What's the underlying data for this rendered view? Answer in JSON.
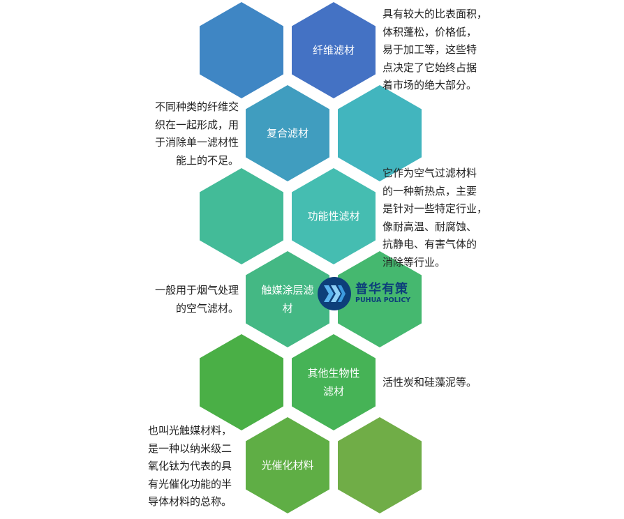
{
  "hexagons": [
    {
      "label": "",
      "color": "#3f86c4"
    },
    {
      "label": "纤维滤材",
      "color": "#4472c4"
    },
    {
      "label": "复合滤材",
      "color": "#409dbf"
    },
    {
      "label": "",
      "color": "#42b5be"
    },
    {
      "label": "",
      "color": "#43bb98"
    },
    {
      "label": "功能性滤材",
      "color": "#45bdb1"
    },
    {
      "label": "触媒涂层滤材",
      "color": "#44b884"
    },
    {
      "label": "",
      "color": "#45b86f"
    },
    {
      "label": "",
      "color": "#4aaf46"
    },
    {
      "label": "其他生物性滤材",
      "color": "#46b356"
    },
    {
      "label": "光催化材料",
      "color": "#5fae45"
    },
    {
      "label": "",
      "color": "#70ad47"
    }
  ],
  "descriptions": {
    "fiber": [
      "具有较大的比表面积，",
      "体积蓬松，价格低，",
      "易于加工等，这些特",
      "点决定了它始终占据",
      "着市场的绝大部分。"
    ],
    "composite": [
      "不同种类的纤维交",
      "织在一起形成，用",
      "于消除单一滤材性",
      "能上的不足。"
    ],
    "functional": [
      "它作为空气过滤材料",
      "的一种新热点，主要",
      "是针对一些特定行业，",
      "像耐高温、耐腐蚀、",
      "抗静电、有害气体的",
      "消除等行业。"
    ],
    "catalyst": [
      "一般用于烟气处理",
      "的空气滤材。"
    ],
    "bio": [
      "活性炭和硅藻泥等。"
    ],
    "photocatalyst": [
      "也叫光触媒材料，",
      "是一种以纳米级二",
      "氧化钛为代表的具",
      "有光催化功能的半",
      "导体材料的总称。"
    ]
  },
  "watermark": {
    "name": "普华有策",
    "sub": "PUHUA POLICY"
  }
}
